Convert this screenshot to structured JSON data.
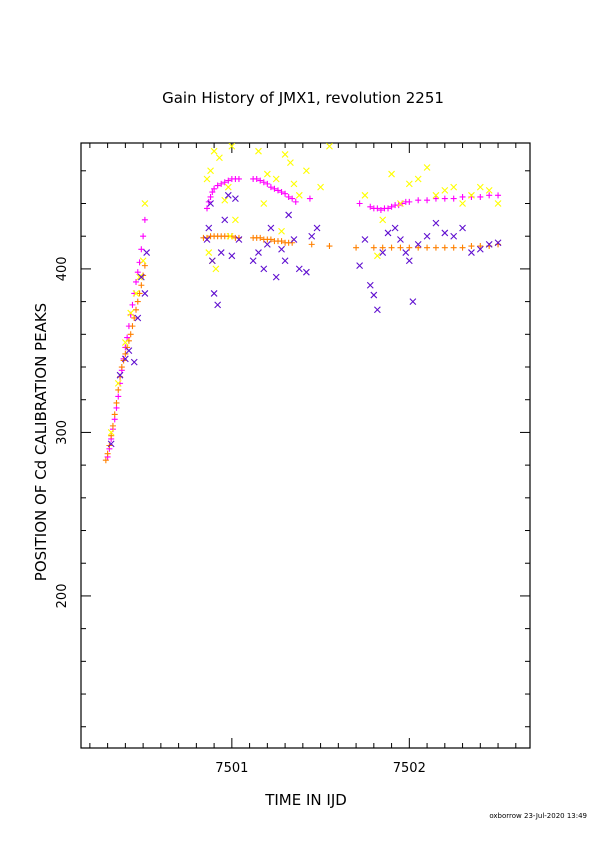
{
  "chart_data": {
    "type": "scatter",
    "title": "Gain History of JMX1, revolution 2251",
    "xlabel": "TIME IN IJD",
    "ylabel": "POSITION OF Cd CALIBRATION PEAKS",
    "xlim": [
      7500.15,
      7502.68
    ],
    "ylim": [
      107,
      477
    ],
    "x_ticks": [
      7501,
      7502
    ],
    "y_ticks": [
      200,
      300,
      400
    ],
    "grid": false,
    "footer": "oxborrow 23-Jul-2020 13:49",
    "series": [
      {
        "color": "#ff00ff",
        "marker": "plus",
        "points": [
          [
            7500.3,
            285
          ],
          [
            7500.31,
            290
          ],
          [
            7500.32,
            296
          ],
          [
            7500.33,
            302
          ],
          [
            7500.34,
            308
          ],
          [
            7500.35,
            315
          ],
          [
            7500.36,
            322
          ],
          [
            7500.37,
            330
          ],
          [
            7500.38,
            338
          ],
          [
            7500.39,
            345
          ],
          [
            7500.4,
            352
          ],
          [
            7500.41,
            358
          ],
          [
            7500.42,
            365
          ],
          [
            7500.43,
            372
          ],
          [
            7500.44,
            378
          ],
          [
            7500.45,
            385
          ],
          [
            7500.46,
            392
          ],
          [
            7500.47,
            398
          ],
          [
            7500.48,
            404
          ],
          [
            7500.49,
            412
          ],
          [
            7500.5,
            420
          ],
          [
            7500.51,
            430
          ],
          [
            7500.86,
            437
          ],
          [
            7500.87,
            441
          ],
          [
            7500.88,
            444
          ],
          [
            7500.89,
            447
          ],
          [
            7500.9,
            449
          ],
          [
            7500.92,
            451
          ],
          [
            7500.94,
            452
          ],
          [
            7500.96,
            453
          ],
          [
            7500.98,
            454
          ],
          [
            7501.0,
            455
          ],
          [
            7501.02,
            455
          ],
          [
            7501.04,
            455
          ],
          [
            7501.12,
            455
          ],
          [
            7501.14,
            455
          ],
          [
            7501.16,
            454
          ],
          [
            7501.18,
            453
          ],
          [
            7501.2,
            452
          ],
          [
            7501.22,
            450
          ],
          [
            7501.24,
            449
          ],
          [
            7501.26,
            448
          ],
          [
            7501.28,
            447
          ],
          [
            7501.3,
            446
          ],
          [
            7501.32,
            444
          ],
          [
            7501.34,
            443
          ],
          [
            7501.36,
            441
          ],
          [
            7501.44,
            443
          ],
          [
            7501.72,
            440
          ],
          [
            7501.78,
            438
          ],
          [
            7501.8,
            437
          ],
          [
            7501.82,
            437
          ],
          [
            7501.84,
            436
          ],
          [
            7501.86,
            437
          ],
          [
            7501.88,
            437
          ],
          [
            7501.9,
            438
          ],
          [
            7501.92,
            439
          ],
          [
            7501.94,
            439
          ],
          [
            7501.96,
            440
          ],
          [
            7501.98,
            441
          ],
          [
            7502.0,
            441
          ],
          [
            7502.05,
            442
          ],
          [
            7502.1,
            442
          ],
          [
            7502.15,
            443
          ],
          [
            7502.2,
            443
          ],
          [
            7502.25,
            443
          ],
          [
            7502.3,
            444
          ],
          [
            7502.35,
            444
          ],
          [
            7502.4,
            444
          ],
          [
            7502.45,
            445
          ],
          [
            7502.5,
            445
          ]
        ]
      },
      {
        "color": "#ff8000",
        "marker": "plus",
        "points": [
          [
            7500.29,
            283
          ],
          [
            7500.3,
            287
          ],
          [
            7500.31,
            292
          ],
          [
            7500.32,
            298
          ],
          [
            7500.33,
            304
          ],
          [
            7500.34,
            311
          ],
          [
            7500.35,
            318
          ],
          [
            7500.36,
            326
          ],
          [
            7500.37,
            334
          ],
          [
            7500.38,
            340
          ],
          [
            7500.39,
            344
          ],
          [
            7500.4,
            348
          ],
          [
            7500.41,
            352
          ],
          [
            7500.42,
            356
          ],
          [
            7500.43,
            360
          ],
          [
            7500.44,
            365
          ],
          [
            7500.45,
            370
          ],
          [
            7500.46,
            375
          ],
          [
            7500.47,
            380
          ],
          [
            7500.48,
            385
          ],
          [
            7500.49,
            390
          ],
          [
            7500.5,
            396
          ],
          [
            7500.51,
            402
          ],
          [
            7500.84,
            419
          ],
          [
            7500.86,
            419
          ],
          [
            7500.88,
            420
          ],
          [
            7500.9,
            420
          ],
          [
            7500.92,
            420
          ],
          [
            7500.94,
            420
          ],
          [
            7500.96,
            420
          ],
          [
            7500.98,
            420
          ],
          [
            7501.0,
            420
          ],
          [
            7501.02,
            419
          ],
          [
            7501.04,
            419
          ],
          [
            7501.12,
            419
          ],
          [
            7501.14,
            419
          ],
          [
            7501.16,
            419
          ],
          [
            7501.18,
            418
          ],
          [
            7501.2,
            418
          ],
          [
            7501.22,
            418
          ],
          [
            7501.24,
            417
          ],
          [
            7501.26,
            417
          ],
          [
            7501.28,
            417
          ],
          [
            7501.3,
            416
          ],
          [
            7501.32,
            416
          ],
          [
            7501.34,
            416
          ],
          [
            7501.45,
            415
          ],
          [
            7501.55,
            414
          ],
          [
            7501.7,
            413
          ],
          [
            7501.8,
            413
          ],
          [
            7501.85,
            413
          ],
          [
            7501.9,
            413
          ],
          [
            7501.95,
            413
          ],
          [
            7502.0,
            413
          ],
          [
            7502.05,
            413
          ],
          [
            7502.1,
            413
          ],
          [
            7502.15,
            413
          ],
          [
            7502.2,
            413
          ],
          [
            7502.25,
            413
          ],
          [
            7502.3,
            413
          ],
          [
            7502.35,
            414
          ],
          [
            7502.4,
            414
          ],
          [
            7502.45,
            414
          ],
          [
            7502.5,
            415
          ]
        ]
      },
      {
        "color": "#ffff00",
        "marker": "cross",
        "points": [
          [
            7500.32,
            300
          ],
          [
            7500.36,
            330
          ],
          [
            7500.4,
            355
          ],
          [
            7500.43,
            373
          ],
          [
            7500.46,
            385
          ],
          [
            7500.48,
            395
          ],
          [
            7500.5,
            405
          ],
          [
            7500.51,
            440
          ],
          [
            7500.86,
            455
          ],
          [
            7500.88,
            460
          ],
          [
            7500.9,
            472
          ],
          [
            7500.93,
            468
          ],
          [
            7500.96,
            442
          ],
          [
            7500.98,
            450
          ],
          [
            7501.0,
            475
          ],
          [
            7501.02,
            430
          ],
          [
            7500.87,
            410
          ],
          [
            7500.89,
            405
          ],
          [
            7500.91,
            400
          ],
          [
            7500.99,
            420
          ],
          [
            7501.15,
            472
          ],
          [
            7501.18,
            440
          ],
          [
            7501.2,
            458
          ],
          [
            7501.25,
            455
          ],
          [
            7501.3,
            470
          ],
          [
            7501.33,
            465
          ],
          [
            7501.35,
            452
          ],
          [
            7501.38,
            445
          ],
          [
            7501.42,
            460
          ],
          [
            7501.5,
            450
          ],
          [
            7501.55,
            475
          ],
          [
            7501.28,
            423
          ],
          [
            7501.75,
            445
          ],
          [
            7501.82,
            408
          ],
          [
            7501.85,
            430
          ],
          [
            7501.9,
            458
          ],
          [
            7501.95,
            440
          ],
          [
            7502.0,
            452
          ],
          [
            7502.05,
            455
          ],
          [
            7502.1,
            462
          ],
          [
            7502.15,
            445
          ],
          [
            7502.2,
            448
          ],
          [
            7502.25,
            450
          ],
          [
            7502.3,
            440
          ],
          [
            7502.35,
            445
          ],
          [
            7502.4,
            450
          ],
          [
            7502.45,
            448
          ],
          [
            7502.5,
            440
          ]
        ]
      },
      {
        "color": "#6010d0",
        "marker": "cross",
        "points": [
          [
            7500.32,
            293
          ],
          [
            7500.37,
            335
          ],
          [
            7500.4,
            345
          ],
          [
            7500.42,
            350
          ],
          [
            7500.45,
            343
          ],
          [
            7500.47,
            370
          ],
          [
            7500.49,
            395
          ],
          [
            7500.51,
            385
          ],
          [
            7500.52,
            410
          ],
          [
            7500.86,
            418
          ],
          [
            7500.87,
            425
          ],
          [
            7500.88,
            440
          ],
          [
            7500.89,
            405
          ],
          [
            7500.9,
            385
          ],
          [
            7500.92,
            378
          ],
          [
            7500.94,
            410
          ],
          [
            7500.96,
            430
          ],
          [
            7500.98,
            445
          ],
          [
            7501.0,
            408
          ],
          [
            7501.02,
            443
          ],
          [
            7501.04,
            418
          ],
          [
            7501.12,
            405
          ],
          [
            7501.15,
            410
          ],
          [
            7501.18,
            400
          ],
          [
            7501.2,
            415
          ],
          [
            7501.22,
            425
          ],
          [
            7501.25,
            395
          ],
          [
            7501.28,
            412
          ],
          [
            7501.3,
            405
          ],
          [
            7501.32,
            433
          ],
          [
            7501.35,
            418
          ],
          [
            7501.38,
            400
          ],
          [
            7501.42,
            398
          ],
          [
            7501.45,
            420
          ],
          [
            7501.48,
            425
          ],
          [
            7501.72,
            402
          ],
          [
            7501.75,
            418
          ],
          [
            7501.78,
            390
          ],
          [
            7501.8,
            384
          ],
          [
            7501.82,
            375
          ],
          [
            7501.85,
            410
          ],
          [
            7501.88,
            422
          ],
          [
            7501.92,
            425
          ],
          [
            7501.95,
            418
          ],
          [
            7501.98,
            410
          ],
          [
            7502.0,
            405
          ],
          [
            7502.02,
            380
          ],
          [
            7502.05,
            415
          ],
          [
            7502.1,
            420
          ],
          [
            7502.15,
            428
          ],
          [
            7502.2,
            422
          ],
          [
            7502.25,
            420
          ],
          [
            7502.3,
            425
          ],
          [
            7502.35,
            410
          ],
          [
            7502.4,
            412
          ],
          [
            7502.45,
            415
          ],
          [
            7502.5,
            416
          ]
        ]
      }
    ]
  }
}
